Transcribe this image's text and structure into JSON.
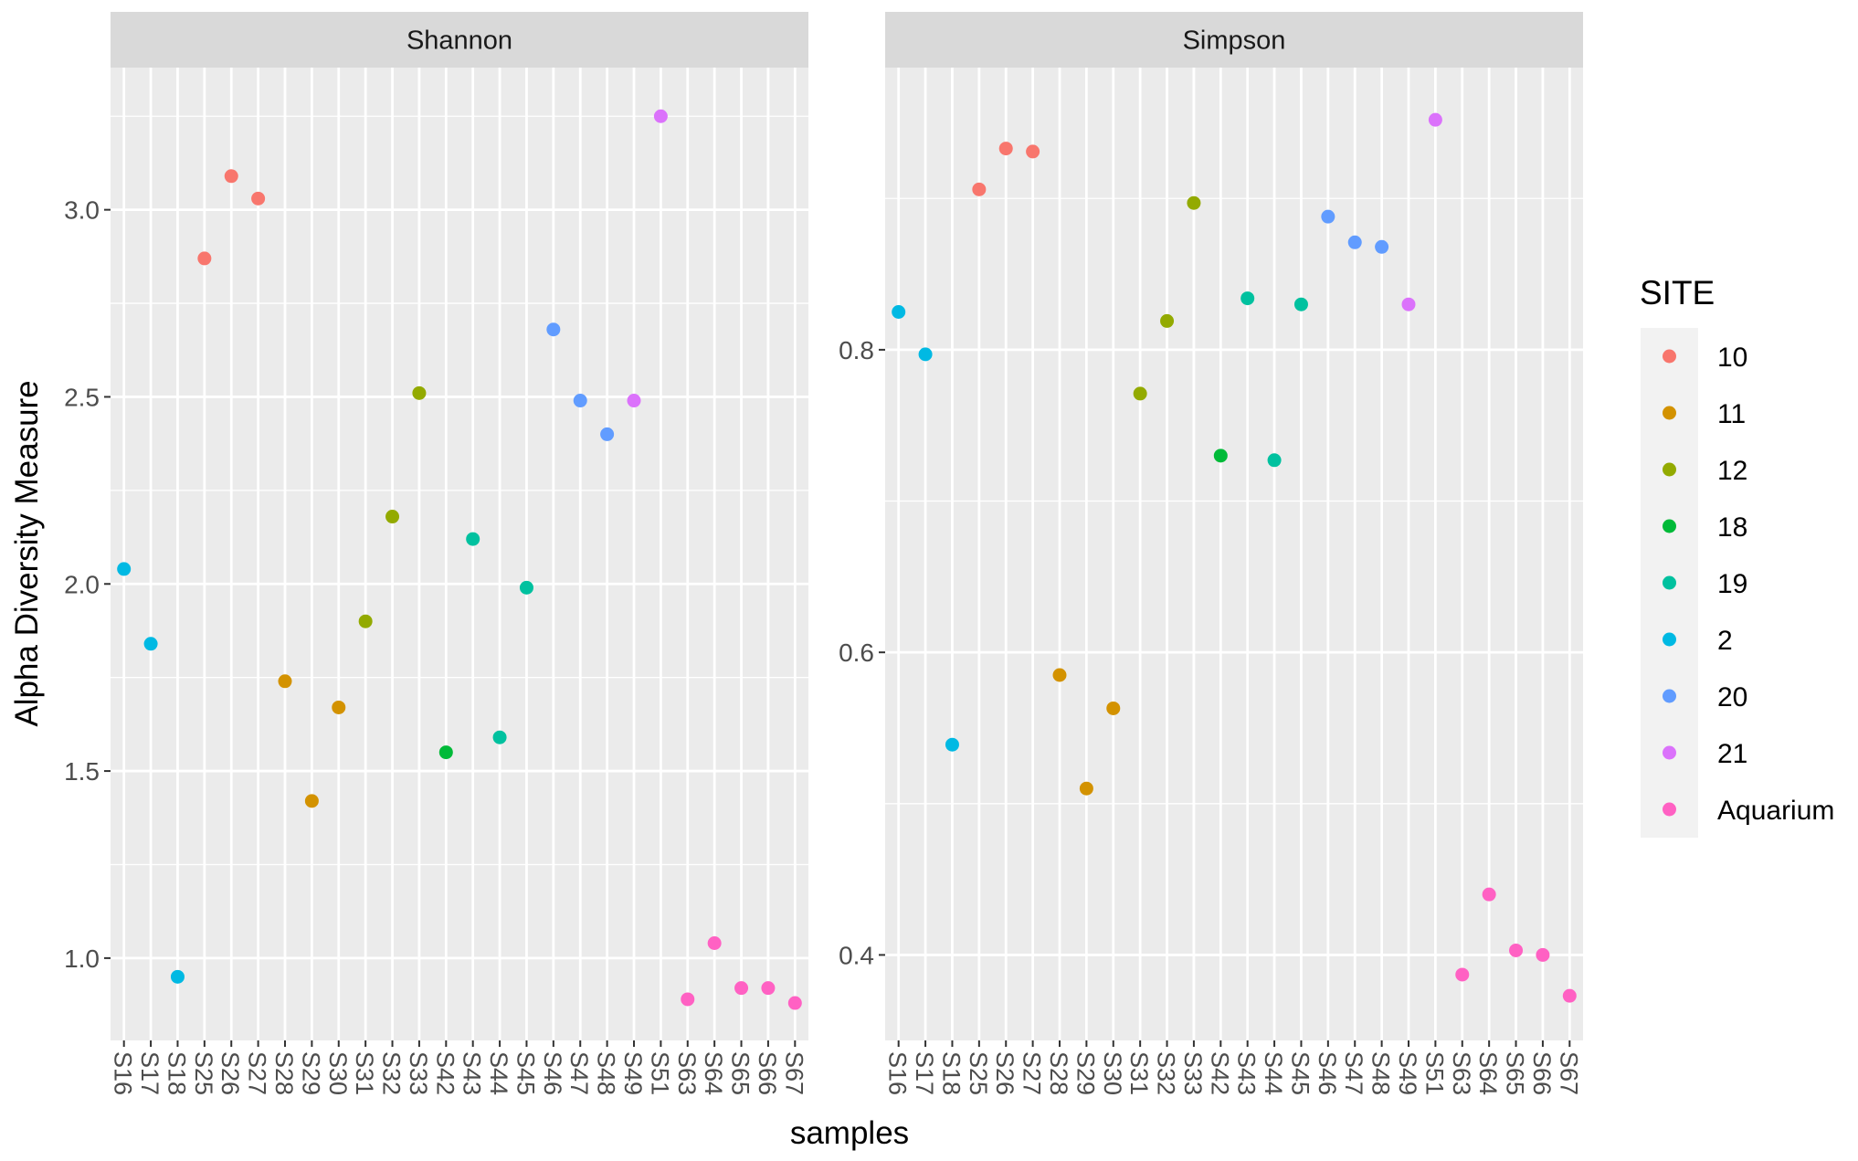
{
  "chart_data": {
    "type": "scatter",
    "xlabel": "samples",
    "ylabel": "Alpha Diversity Measure",
    "samples": [
      "S16",
      "S17",
      "S18",
      "S25",
      "S26",
      "S27",
      "S28",
      "S29",
      "S30",
      "S31",
      "S32",
      "S33",
      "S42",
      "S43",
      "S44",
      "S45",
      "S46",
      "S47",
      "S48",
      "S49",
      "S51",
      "S63",
      "S64",
      "S65",
      "S66",
      "S67"
    ],
    "sites": [
      "2",
      "2",
      "2",
      "10",
      "10",
      "10",
      "11",
      "11",
      "11",
      "12",
      "12",
      "12",
      "18",
      "19",
      "19",
      "19",
      "20",
      "20",
      "20",
      "21",
      "21",
      "Aquarium",
      "Aquarium",
      "Aquarium",
      "Aquarium",
      "Aquarium"
    ],
    "legend": {
      "title": "SITE",
      "position": "right",
      "entries": [
        {
          "label": "10",
          "color": "#F8766D"
        },
        {
          "label": "11",
          "color": "#D39200"
        },
        {
          "label": "12",
          "color": "#93AA00"
        },
        {
          "label": "18",
          "color": "#00BA38"
        },
        {
          "label": "19",
          "color": "#00C19F"
        },
        {
          "label": "2",
          "color": "#00B9E3"
        },
        {
          "label": "20",
          "color": "#619CFF"
        },
        {
          "label": "21",
          "color": "#DB72FB"
        },
        {
          "label": "Aquarium",
          "color": "#FF61C3"
        }
      ]
    },
    "panels": [
      {
        "title": "Shannon",
        "ylim": [
          0.78,
          3.38
        ],
        "yticks": [
          1.0,
          1.5,
          2.0,
          2.5,
          3.0
        ],
        "ytick_labels": [
          "1.0",
          "1.5",
          "2.0",
          "2.5",
          "3.0"
        ],
        "values": [
          2.04,
          1.84,
          0.95,
          2.87,
          3.09,
          3.03,
          1.74,
          1.42,
          1.67,
          1.9,
          2.18,
          2.51,
          1.55,
          2.12,
          1.59,
          1.99,
          2.68,
          2.49,
          2.4,
          2.49,
          3.25,
          0.89,
          1.04,
          0.92,
          0.92,
          0.88
        ]
      },
      {
        "title": "Simpson",
        "ylim": [
          0.3435,
          0.9865
        ],
        "yticks": [
          0.4,
          0.6,
          0.8
        ],
        "ytick_labels": [
          "0.4",
          "0.6",
          "0.8"
        ],
        "values": [
          0.825,
          0.797,
          0.539,
          0.906,
          0.933,
          0.931,
          0.585,
          0.51,
          0.563,
          0.771,
          0.819,
          0.897,
          0.73,
          0.834,
          0.727,
          0.83,
          0.888,
          0.871,
          0.868,
          0.83,
          0.952,
          0.387,
          0.44,
          0.403,
          0.4,
          0.373
        ]
      }
    ],
    "grid": true
  }
}
